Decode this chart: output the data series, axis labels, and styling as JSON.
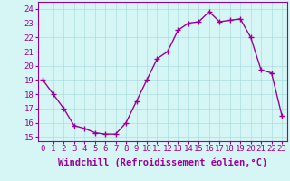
{
  "x": [
    0,
    1,
    2,
    3,
    4,
    5,
    6,
    7,
    8,
    9,
    10,
    11,
    12,
    13,
    14,
    15,
    16,
    17,
    18,
    19,
    20,
    21,
    22,
    23
  ],
  "y": [
    19.0,
    18.0,
    17.0,
    15.8,
    15.6,
    15.3,
    15.2,
    15.2,
    16.0,
    17.5,
    19.0,
    20.5,
    21.0,
    22.5,
    23.0,
    23.1,
    23.8,
    23.1,
    23.2,
    23.3,
    22.0,
    19.7,
    19.5,
    16.5
  ],
  "line_color": "#990099",
  "marker": "+",
  "marker_size": 4,
  "background_color": "#d6f5f5",
  "grid_color": "#aadddd",
  "xlabel": "Windchill (Refroidissement éolien,°C)",
  "xlabel_fontsize": 7.5,
  "xlabel_color": "#990099",
  "xtick_labels": [
    "0",
    "1",
    "2",
    "3",
    "4",
    "5",
    "6",
    "7",
    "8",
    "9",
    "10",
    "11",
    "12",
    "13",
    "14",
    "15",
    "16",
    "17",
    "18",
    "19",
    "20",
    "21",
    "22",
    "23"
  ],
  "ytick_labels": [
    "15",
    "16",
    "17",
    "18",
    "19",
    "20",
    "21",
    "22",
    "23",
    "24"
  ],
  "ytick_values": [
    15,
    16,
    17,
    18,
    19,
    20,
    21,
    22,
    23,
    24
  ],
  "ylim": [
    14.7,
    24.5
  ],
  "xlim": [
    -0.5,
    23.5
  ],
  "tick_fontsize": 6.5,
  "tick_color": "#990099",
  "line_width": 1.0,
  "spine_color": "#990099",
  "fig_width": 3.2,
  "fig_height": 2.0,
  "dpi": 100
}
